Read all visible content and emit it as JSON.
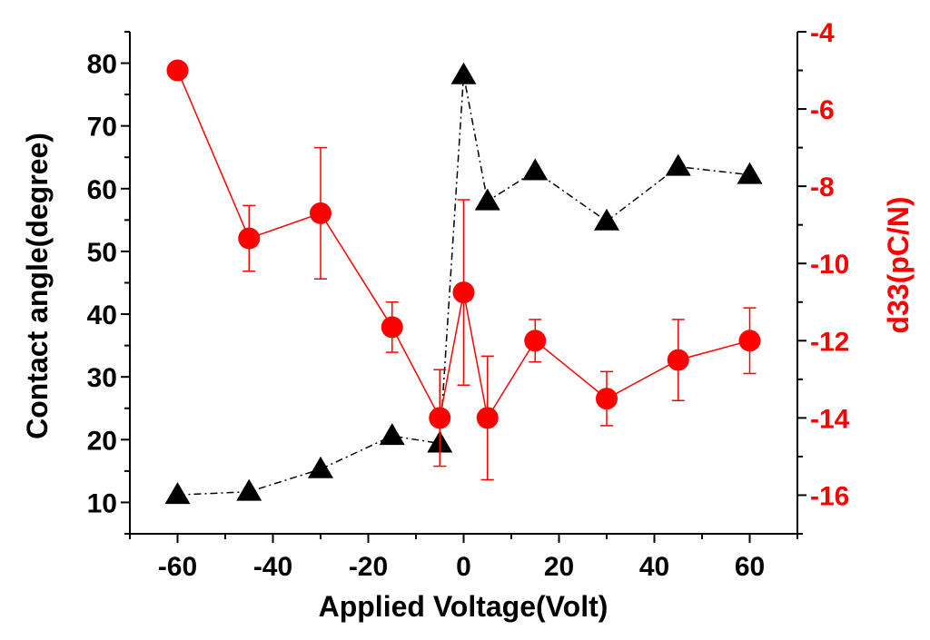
{
  "chart_data": {
    "type": "scatter",
    "title": "",
    "xlabel": "Applied Voltage(Volt)",
    "ylabel": "Contact angle(degree)",
    "y2label": "d33(pC/N)",
    "xlim": [
      -70,
      70
    ],
    "ylim": [
      5,
      85
    ],
    "y2lim": [
      -17,
      -4
    ],
    "x_ticks": [
      -60,
      -40,
      -20,
      0,
      20,
      40,
      60
    ],
    "y_ticks": [
      10,
      20,
      30,
      40,
      50,
      60,
      70,
      80
    ],
    "y2_ticks": [
      -16,
      -14,
      -12,
      -10,
      -8,
      -6,
      -4
    ],
    "grid": false,
    "series": [
      {
        "name": "Contact angle",
        "axis": "left",
        "marker": "triangle",
        "line": "dash-dot",
        "color": "#000000",
        "x": [
          -60,
          -45,
          -30,
          -15,
          -5,
          0,
          5,
          15,
          30,
          45,
          60
        ],
        "y": [
          11.2,
          11.7,
          15.3,
          20.6,
          19.4,
          78.1,
          58.0,
          62.8,
          54.8,
          63.5,
          62.2
        ]
      },
      {
        "name": "d33",
        "axis": "right",
        "marker": "circle",
        "line": "solid",
        "color": "#ff0000",
        "x": [
          -60,
          -45,
          -30,
          -15,
          -5,
          0,
          5,
          15,
          30,
          45,
          60
        ],
        "y": [
          -5.0,
          -9.35,
          -8.7,
          -11.65,
          -14.0,
          -10.75,
          -14.0,
          -12.0,
          -13.5,
          -12.5,
          -12.0
        ],
        "err": [
          0,
          0.85,
          1.7,
          0.65,
          1.25,
          2.4,
          1.6,
          0.55,
          0.7,
          1.05,
          0.85
        ]
      }
    ]
  }
}
